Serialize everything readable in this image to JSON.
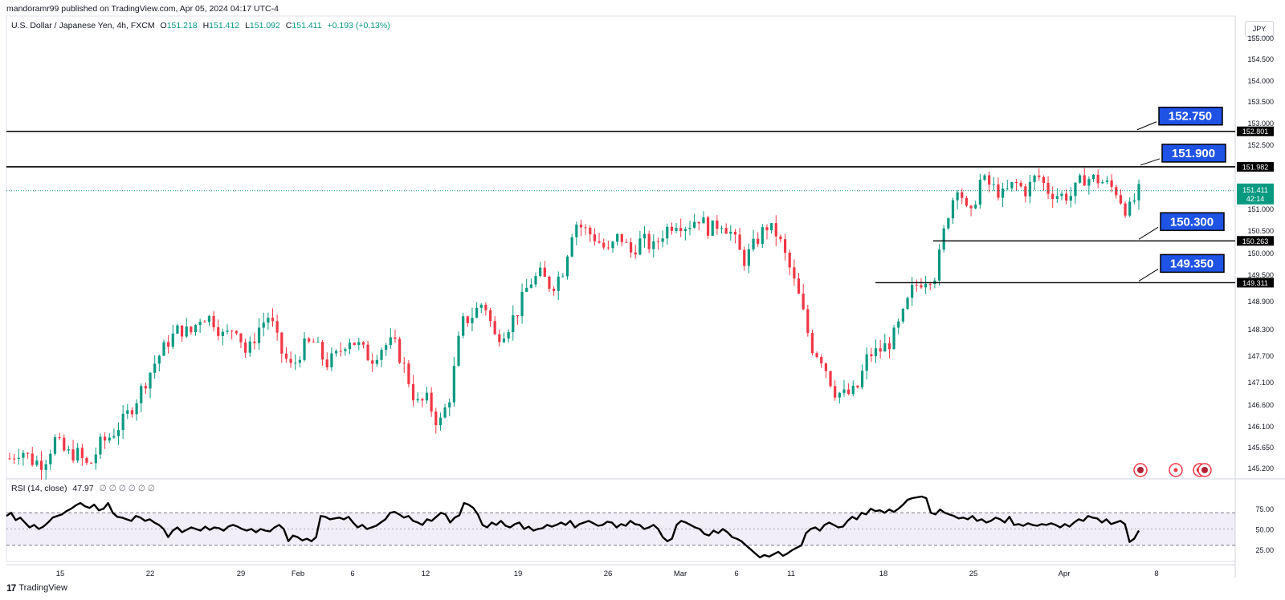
{
  "header": {
    "publisher": "mandoramr99 published on TradingView.com, Apr 05, 2024 04:17 UTC-4",
    "symbol": "U.S. Dollar / Japanese Yen, 4h, FXCM",
    "open_label": "O",
    "open": "151.218",
    "high_label": "H",
    "high": "151.412",
    "low_label": "L",
    "low": "151.092",
    "close_label": "C",
    "close": "151.411",
    "change": "+0.193 (+0.13%)",
    "currency": "JPY"
  },
  "rsi": {
    "label": "RSI (14, close)",
    "value": "47.97",
    "extra": "∅ ∅ ∅ ∅ ∅ ∅",
    "levels": [
      "75.00",
      "50.00",
      "25.00"
    ],
    "series": [
      66,
      70,
      61,
      64,
      58,
      52,
      55,
      50,
      53,
      58,
      64,
      66,
      68,
      72,
      75,
      79,
      82,
      78,
      76,
      80,
      73,
      75,
      82,
      70,
      65,
      64,
      62,
      60,
      66,
      64,
      60,
      62,
      58,
      55,
      50,
      40,
      48,
      52,
      46,
      49,
      52,
      50,
      48,
      53,
      49,
      52,
      51,
      48,
      53,
      55,
      53,
      50,
      48,
      50,
      46,
      50,
      48,
      47,
      52,
      55,
      50,
      35,
      42,
      40,
      36,
      38,
      35,
      40,
      66,
      65,
      62,
      63,
      64,
      62,
      65,
      58,
      52,
      55,
      50,
      52,
      54,
      58,
      62,
      70,
      71,
      68,
      64,
      66,
      60,
      58,
      55,
      62,
      60,
      65,
      70,
      68,
      58,
      64,
      67,
      82,
      80,
      76,
      68,
      55,
      52,
      58,
      55,
      60,
      54,
      52,
      56,
      58,
      50,
      53,
      48,
      50,
      51,
      55,
      53,
      55,
      58,
      55,
      60,
      52,
      56,
      58,
      60,
      57,
      54,
      55,
      59,
      58,
      52,
      56,
      54,
      60,
      56,
      55,
      50,
      52,
      55,
      50,
      40,
      35,
      38,
      55,
      60,
      58,
      55,
      52,
      50,
      44,
      42,
      48,
      45,
      50,
      46,
      40,
      38,
      35,
      30,
      25,
      20,
      15,
      18,
      16,
      19,
      22,
      17,
      20,
      24,
      27,
      30,
      45,
      50,
      52,
      48,
      55,
      58,
      55,
      52,
      53,
      60,
      65,
      62,
      70,
      68,
      75,
      72,
      73,
      70,
      74,
      71,
      75,
      80,
      86,
      88,
      89,
      90,
      88,
      70,
      68,
      74,
      70,
      68,
      66,
      63,
      64,
      62,
      66,
      60,
      62,
      58,
      60,
      64,
      62,
      58,
      65,
      55,
      56,
      54,
      57,
      55,
      54,
      56,
      55,
      57,
      55,
      52,
      56,
      53,
      58,
      62,
      60,
      66,
      64,
      63,
      58,
      62,
      56,
      58,
      60,
      56,
      34,
      38,
      48
    ]
  },
  "price_levels": [
    {
      "label": "152.750",
      "axis_value": "152.801",
      "price": 152.801
    },
    {
      "label": "151.900",
      "axis_value": "151.982",
      "price": 151.982
    },
    {
      "label": "150.300",
      "axis_value": "150.263",
      "price": 150.263
    },
    {
      "label": "149.350",
      "axis_value": "149.311",
      "price": 149.311
    }
  ],
  "current_price": {
    "value": "151.411",
    "countdown": "42:14",
    "price": 151.411
  },
  "brand": "TradingView",
  "colors": {
    "up": "#089981",
    "down": "#f23645",
    "label_bg": "#1e53e5",
    "rsi_line": "#000000",
    "rsi_band": "#7e57c2"
  },
  "chart_data": {
    "type": "candlestick",
    "y_axis_ticks": [
      "155.000",
      "154.500",
      "154.000",
      "153.500",
      "153.000",
      "152.500",
      "152.000",
      "151.500",
      "151.000",
      "150.500",
      "150.000",
      "149.500",
      "148.900",
      "148.300",
      "147.700",
      "147.100",
      "146.600",
      "146.100",
      "145.650",
      "145.200"
    ],
    "x_axis_ticks": [
      "15",
      "22",
      "29",
      "Feb",
      "6",
      "12",
      "19",
      "26",
      "Mar",
      "6",
      "11",
      "18",
      "25",
      "Apr",
      "8"
    ],
    "price_trajectory": [
      [
        0,
        145.4
      ],
      [
        1,
        145.6
      ],
      [
        2,
        145.35
      ],
      [
        3,
        145.3
      ],
      [
        4,
        145.8
      ],
      [
        5,
        145.5
      ],
      [
        6,
        145.5
      ],
      [
        7,
        145.2
      ],
      [
        8,
        145.7
      ],
      [
        9,
        145.9
      ],
      [
        10,
        146.2
      ],
      [
        11,
        146.6
      ],
      [
        12,
        147.1
      ],
      [
        13,
        147.6
      ],
      [
        14,
        148.0
      ],
      [
        15,
        148.3
      ],
      [
        16,
        148.2
      ],
      [
        17,
        148.6
      ],
      [
        18,
        148.5
      ],
      [
        19,
        148.1
      ],
      [
        20,
        148.4
      ],
      [
        21,
        147.7
      ],
      [
        22,
        148.3
      ],
      [
        23,
        148.6
      ],
      [
        24,
        147.8
      ],
      [
        25,
        147.4
      ],
      [
        26,
        147.9
      ],
      [
        27,
        148.0
      ],
      [
        28,
        147.5
      ],
      [
        29,
        147.7
      ],
      [
        30,
        148.1
      ],
      [
        31,
        147.9
      ],
      [
        32,
        147.6
      ],
      [
        33,
        147.9
      ],
      [
        34,
        148.0
      ],
      [
        35,
        147.4
      ],
      [
        36,
        146.6
      ],
      [
        37,
        146.7
      ],
      [
        38,
        146.1
      ],
      [
        39,
        146.8
      ],
      [
        40,
        148.4
      ],
      [
        41,
        148.6
      ],
      [
        42,
        148.9
      ],
      [
        43,
        148.1
      ],
      [
        44,
        148.3
      ],
      [
        45,
        148.7
      ],
      [
        46,
        149.3
      ],
      [
        47,
        149.5
      ],
      [
        48,
        149.2
      ],
      [
        49,
        149.6
      ],
      [
        50,
        150.7
      ],
      [
        51,
        150.5
      ],
      [
        52,
        150.3
      ],
      [
        53,
        150.0
      ],
      [
        54,
        150.4
      ],
      [
        55,
        150.0
      ],
      [
        56,
        150.3
      ],
      [
        57,
        150.1
      ],
      [
        58,
        150.5
      ],
      [
        59,
        150.7
      ],
      [
        60,
        150.6
      ],
      [
        61,
        150.8
      ],
      [
        62,
        150.5
      ],
      [
        63,
        150.7
      ],
      [
        64,
        150.4
      ],
      [
        65,
        149.8
      ],
      [
        66,
        150.2
      ],
      [
        67,
        150.6
      ],
      [
        68,
        150.4
      ],
      [
        69,
        149.7
      ],
      [
        70,
        148.9
      ],
      [
        71,
        147.9
      ],
      [
        72,
        147.6
      ],
      [
        73,
        146.9
      ],
      [
        74,
        146.8
      ],
      [
        75,
        146.9
      ],
      [
        76,
        147.7
      ],
      [
        77,
        147.8
      ],
      [
        78,
        148.0
      ],
      [
        79,
        148.5
      ],
      [
        80,
        149.2
      ],
      [
        81,
        149.4
      ],
      [
        82,
        149.5
      ],
      [
        83,
        150.8
      ],
      [
        84,
        151.6
      ],
      [
        85,
        150.7
      ],
      [
        86,
        151.7
      ],
      [
        87,
        151.5
      ],
      [
        88,
        151.3
      ],
      [
        89,
        151.6
      ],
      [
        90,
        151.4
      ],
      [
        91,
        151.8
      ],
      [
        92,
        151.4
      ],
      [
        93,
        151.3
      ],
      [
        94,
        151.3
      ],
      [
        95,
        151.7
      ],
      [
        96,
        151.7
      ],
      [
        97,
        151.6
      ],
      [
        98,
        151.4
      ],
      [
        99,
        150.9
      ],
      [
        100,
        151.4
      ]
    ]
  }
}
